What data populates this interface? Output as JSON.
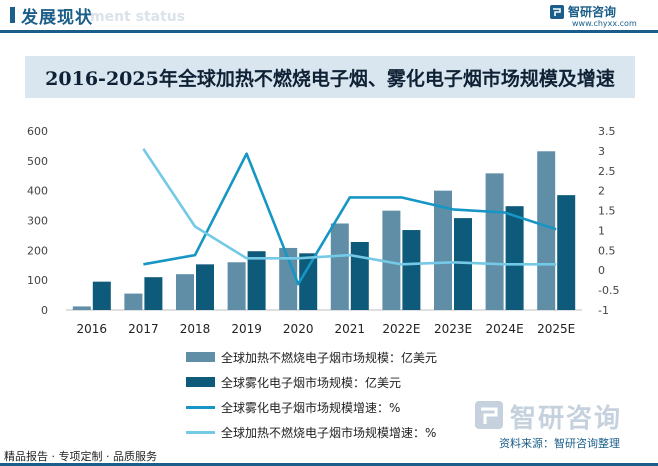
{
  "header": {
    "section_title": "发展现状",
    "section_subtitle": "ment status",
    "brand_name": "智研咨询",
    "brand_url": "www.chyxx.com"
  },
  "footer": {
    "left_text": "精品报告 · 专项定制 · 品质服务",
    "source_text": "资料来源：智研咨询整理",
    "watermark_text": "智研咨询"
  },
  "colors": {
    "brand": "#1a5e89",
    "bar_heatnotburn": "#5f8ea6",
    "bar_vapor": "#0e5a7a",
    "line_vapor_growth": "#1596c4",
    "line_heatnotburn_growth": "#74c9e6"
  },
  "chart_data": {
    "type": "bar",
    "title": "2016-2025年全球加热不燃烧电子烟、雾化电子烟市场规模及增速",
    "categories": [
      "2016",
      "2017",
      "2018",
      "2019",
      "2020",
      "2021",
      "2022E",
      "2023E",
      "2024E",
      "2025E"
    ],
    "y_left": {
      "ylim": [
        0,
        600
      ],
      "ticks": [
        "0",
        "100",
        "200",
        "300",
        "400",
        "500",
        "600"
      ]
    },
    "y_right": {
      "ylim": [
        -1,
        3.5
      ],
      "ticks": [
        "-1",
        "-0.5",
        "0",
        "0.5",
        "1",
        "1.5",
        "2",
        "2.5",
        "3",
        "3.5"
      ]
    },
    "grid": false,
    "legend_position": "bottom",
    "series": [
      {
        "name": "全球加热不燃烧电子烟市场规模：亿美元",
        "kind": "bar",
        "axis": "left",
        "values": [
          12,
          55,
          120,
          160,
          208,
          290,
          333,
          400,
          458,
          532
        ]
      },
      {
        "name": "全球雾化电子烟市场规模：亿美元",
        "kind": "bar",
        "axis": "left",
        "values": [
          95,
          110,
          153,
          197,
          190,
          228,
          268,
          308,
          348,
          385
        ]
      },
      {
        "name": "全球雾化电子烟市场规模增速：%",
        "kind": "line",
        "axis": "right",
        "values": [
          null,
          0.15,
          0.38,
          2.93,
          -0.35,
          1.83,
          1.83,
          1.53,
          1.45,
          1.03
        ]
      },
      {
        "name": "全球加热不燃烧电子烟市场规模增速：%",
        "kind": "line",
        "axis": "right",
        "values": [
          null,
          3.05,
          1.1,
          0.3,
          0.3,
          0.38,
          0.15,
          0.2,
          0.15,
          0.15
        ]
      }
    ]
  }
}
